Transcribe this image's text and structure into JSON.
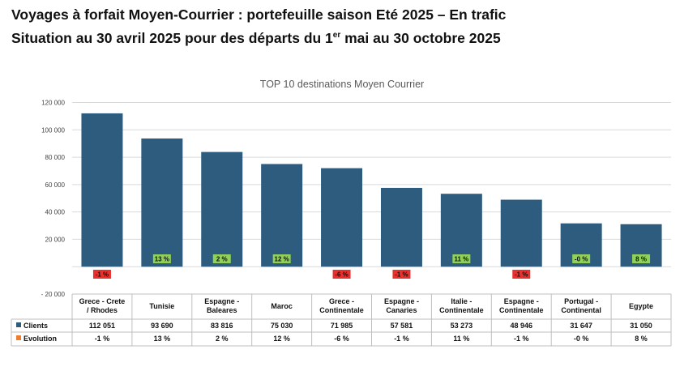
{
  "header": {
    "line1": "Voyages à forfait Moyen-Courrier : portefeuille saison Eté 2025 – En trafic",
    "line2_a": "Situation au 30 avril 2025 pour des départs du 1",
    "line2_sup": "er",
    "line2_b": " mai au 30 octobre 2025"
  },
  "chart_data": {
    "type": "bar",
    "title": "TOP 10 destinations Moyen Courrier",
    "categories": [
      [
        "Grece - Crete",
        "/ Rhodes"
      ],
      [
        "Tunisie"
      ],
      [
        "Espagne -",
        "Baleares"
      ],
      [
        "Maroc"
      ],
      [
        "Grece -",
        "Continentale"
      ],
      [
        "Espagne -",
        "Canaries"
      ],
      [
        "Italie -",
        "Continentale"
      ],
      [
        "Espagne -",
        "Continentale"
      ],
      [
        "Portugal -",
        "Continental"
      ],
      [
        "Egypte"
      ]
    ],
    "series": [
      {
        "name": "Clients",
        "color": "#2e5c7e",
        "values": [
          112051,
          93690,
          83816,
          75030,
          71985,
          57581,
          53273,
          48946,
          31647,
          31050
        ],
        "labels": [
          "112 051",
          "93 690",
          "83 816",
          "75 030",
          "71 985",
          "57 581",
          "53 273",
          "48 946",
          "31 647",
          "31 050"
        ]
      },
      {
        "name": "Evolution",
        "color": "#ed7d31",
        "values": [
          -1,
          13,
          2,
          12,
          -6,
          -1,
          11,
          -1,
          0,
          8
        ],
        "labels": [
          "-1 %",
          "13 %",
          "2 %",
          "12 %",
          "-6 %",
          "-1 %",
          "11 %",
          "-1 %",
          "-0 %",
          "8 %"
        ],
        "label_colors": [
          "#e8302c",
          "#8fd15a",
          "#8fd15a",
          "#8fd15a",
          "#e8302c",
          "#e8302c",
          "#8fd15a",
          "#e8302c",
          "#8fd15a",
          "#8fd15a"
        ]
      }
    ],
    "yticks": [
      120000,
      100000,
      80000,
      60000,
      40000,
      20000,
      0,
      -20000
    ],
    "ytick_labels": [
      "120 000",
      "100 000",
      "80 000",
      "60 000",
      "40 000",
      "20 000",
      "",
      "- 20 000"
    ],
    "ylim": [
      -20000,
      120000
    ],
    "grid": true,
    "legend": "data-table"
  }
}
